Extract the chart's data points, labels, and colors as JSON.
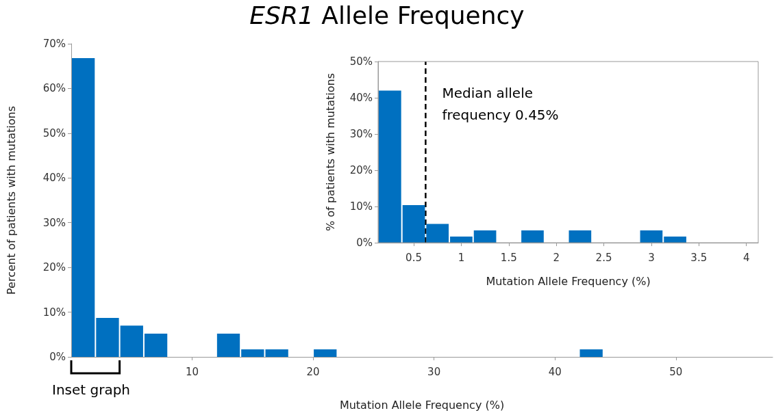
{
  "chart_data": [
    {
      "type": "histogram",
      "title": "ESR1 Allele Frequency",
      "xlabel": "Mutation Allele Frequency (%)",
      "ylabel": "Percent of patients with mutations",
      "bins": [
        0,
        2,
        4,
        6,
        8,
        10,
        12,
        14,
        16,
        18,
        20,
        22,
        24,
        26,
        28,
        30,
        32,
        34,
        36,
        38,
        40,
        42,
        44,
        46,
        48,
        50,
        52,
        54,
        56,
        58
      ],
      "values": [
        66.8,
        8.7,
        7.0,
        5.2,
        0,
        0,
        5.2,
        1.7,
        1.7,
        0,
        1.7,
        0,
        0,
        0,
        0,
        0,
        0,
        0,
        0,
        0,
        0,
        1.7,
        0,
        0,
        0,
        0,
        0,
        0,
        0
      ],
      "color": "#0070c0",
      "xlim": [
        0,
        58
      ],
      "xticks": [
        10,
        20,
        30,
        40,
        50
      ],
      "ylim": [
        0,
        70
      ],
      "yticks": [
        {
          "value": 0,
          "label": "0%"
        },
        {
          "value": 10,
          "label": "10%"
        },
        {
          "value": 20,
          "label": "20%"
        },
        {
          "value": 30,
          "label": "30%"
        },
        {
          "value": 40,
          "label": "40%"
        },
        {
          "value": 50,
          "label": "50%"
        },
        {
          "value": 60,
          "label": "60%"
        },
        {
          "value": 70,
          "label": "70%"
        }
      ],
      "annotations": [
        "Inset graph"
      ]
    },
    {
      "type": "histogram",
      "xlabel": "Mutation Allele Frequency (%)",
      "ylabel": "% of patients with mutations",
      "bins": [
        0.125,
        0.375,
        0.625,
        0.875,
        1.125,
        1.375,
        1.625,
        1.875,
        2.125,
        2.375,
        2.625,
        2.875,
        3.125,
        3.375,
        3.625,
        3.875,
        4.125
      ],
      "values": [
        42,
        10.4,
        5.2,
        1.7,
        3.4,
        0,
        3.4,
        0,
        3.4,
        0,
        0,
        3.4,
        1.7,
        0,
        0,
        0
      ],
      "color": "#0070c0",
      "xlim": [
        0.125,
        4.125
      ],
      "xticks": [
        0.5,
        1,
        1.5,
        2,
        2.5,
        3,
        3.5,
        4
      ],
      "ylim": [
        0,
        50
      ],
      "yticks": [
        {
          "value": 0,
          "label": "0%"
        },
        {
          "value": 10,
          "label": "10%"
        },
        {
          "value": 20,
          "label": "20%"
        },
        {
          "value": 30,
          "label": "30%"
        },
        {
          "value": 40,
          "label": "40%"
        },
        {
          "value": 50,
          "label": "50%"
        }
      ],
      "ref_lines": [
        {
          "axis": "x",
          "value": 0.625,
          "label": "Median allele frequency 0.45%",
          "color": "#000000",
          "line_style": "dashed"
        }
      ]
    }
  ]
}
